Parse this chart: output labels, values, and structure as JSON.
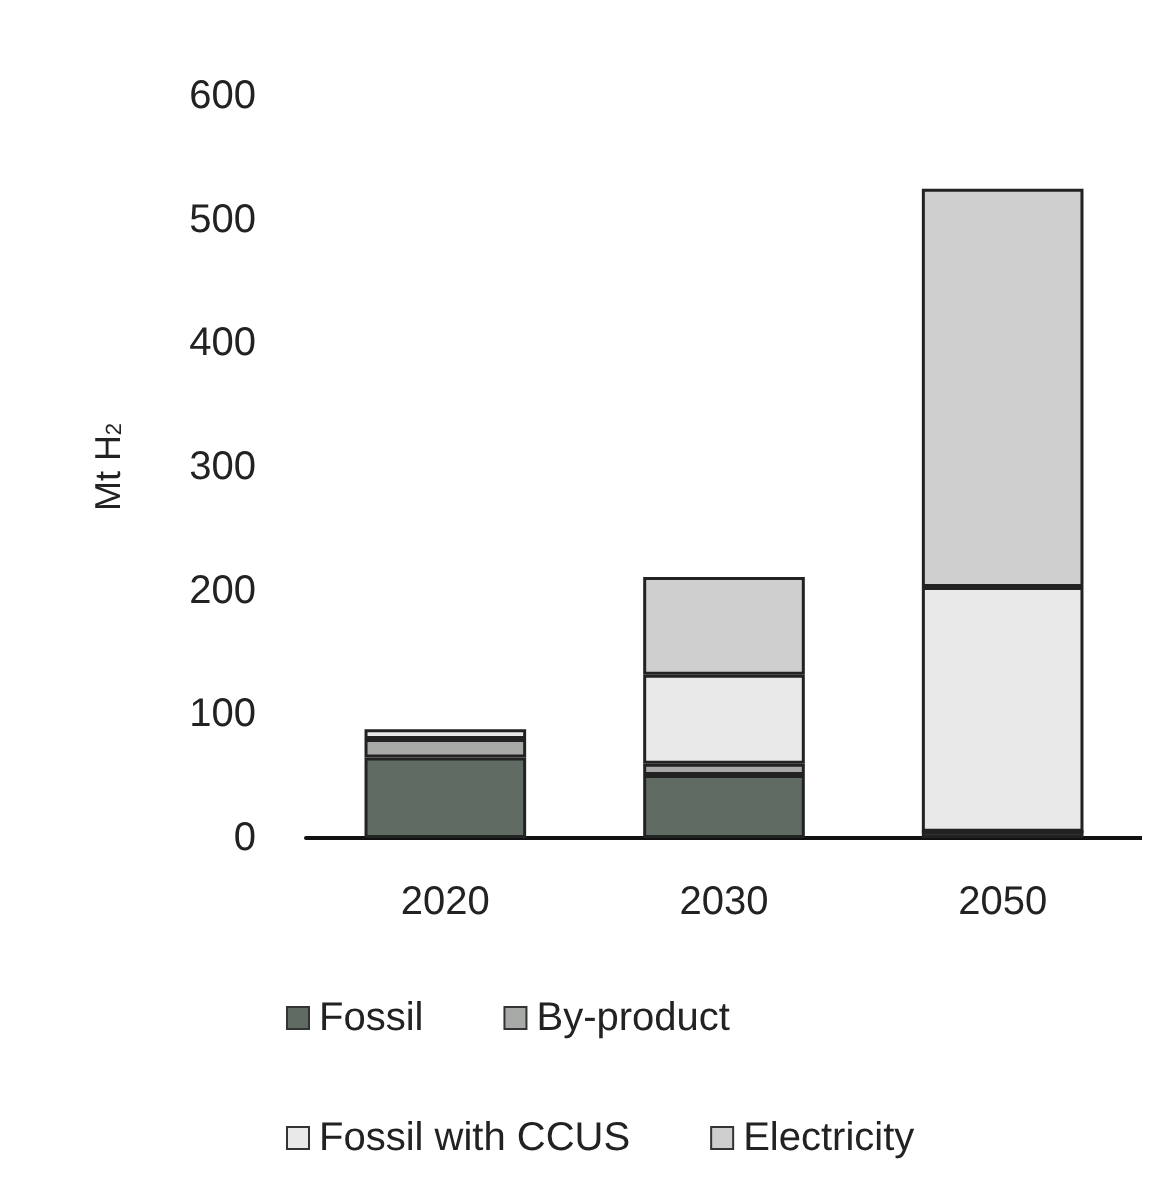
{
  "chart_data": {
    "type": "bar",
    "stacked": true,
    "ylabel": "Mt H$_{2}$",
    "categories": [
      "2020",
      "2030",
      "2050"
    ],
    "series": [
      {
        "name": "Fossil",
        "color": "#5f6b63",
        "values": [
          65,
          51,
          5
        ]
      },
      {
        "name": "By-product",
        "color": "#a8aaa8",
        "values": [
          15,
          9,
          0
        ]
      },
      {
        "name": "Fossil with CCUS",
        "color": "#e9e9e9",
        "values": [
          8,
          72,
          198
        ]
      },
      {
        "name": "Electricity",
        "color": "#cfcfcf",
        "values": [
          null,
          79,
          322
        ]
      }
    ],
    "ylim": [
      0,
      600
    ],
    "yticks": [
      0,
      100,
      200,
      300,
      400,
      500,
      600
    ],
    "grid": false,
    "legend": "bottom"
  }
}
